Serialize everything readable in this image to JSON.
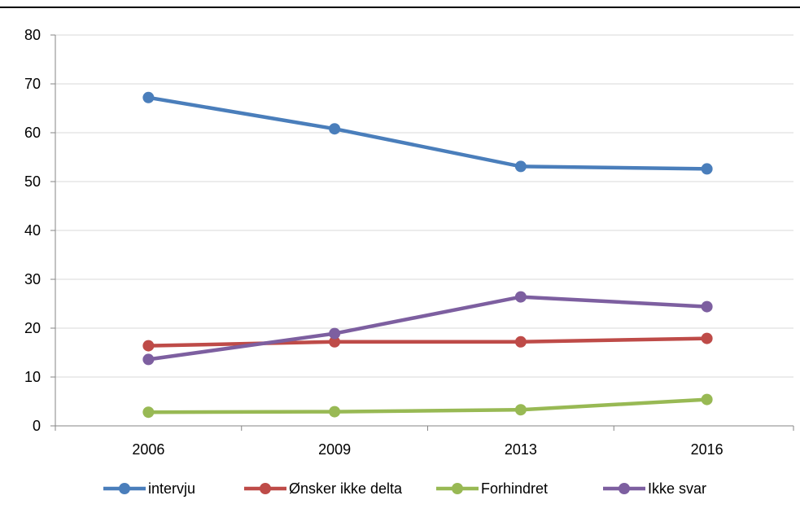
{
  "chart_data": {
    "type": "line",
    "title": "",
    "xlabel": "",
    "ylabel": "",
    "categories": [
      "2006",
      "2009",
      "2013",
      "2016"
    ],
    "ylim": [
      0,
      80
    ],
    "yticks": [
      0,
      10,
      20,
      30,
      40,
      50,
      60,
      70,
      80
    ],
    "grid": true,
    "legend_position": "bottom",
    "series": [
      {
        "name": "intervju",
        "color": "#4a7ebb",
        "values": [
          67.2,
          60.8,
          53.1,
          52.6
        ]
      },
      {
        "name": "Ønsker ikke delta",
        "color": "#be4b48",
        "values": [
          16.4,
          17.2,
          17.2,
          17.9
        ]
      },
      {
        "name": "Forhindret",
        "color": "#98b954",
        "values": [
          2.8,
          2.9,
          3.3,
          5.4
        ]
      },
      {
        "name": "Ikke svar",
        "color": "#7d5fa0",
        "values": [
          13.6,
          18.9,
          26.4,
          24.4
        ]
      }
    ]
  }
}
